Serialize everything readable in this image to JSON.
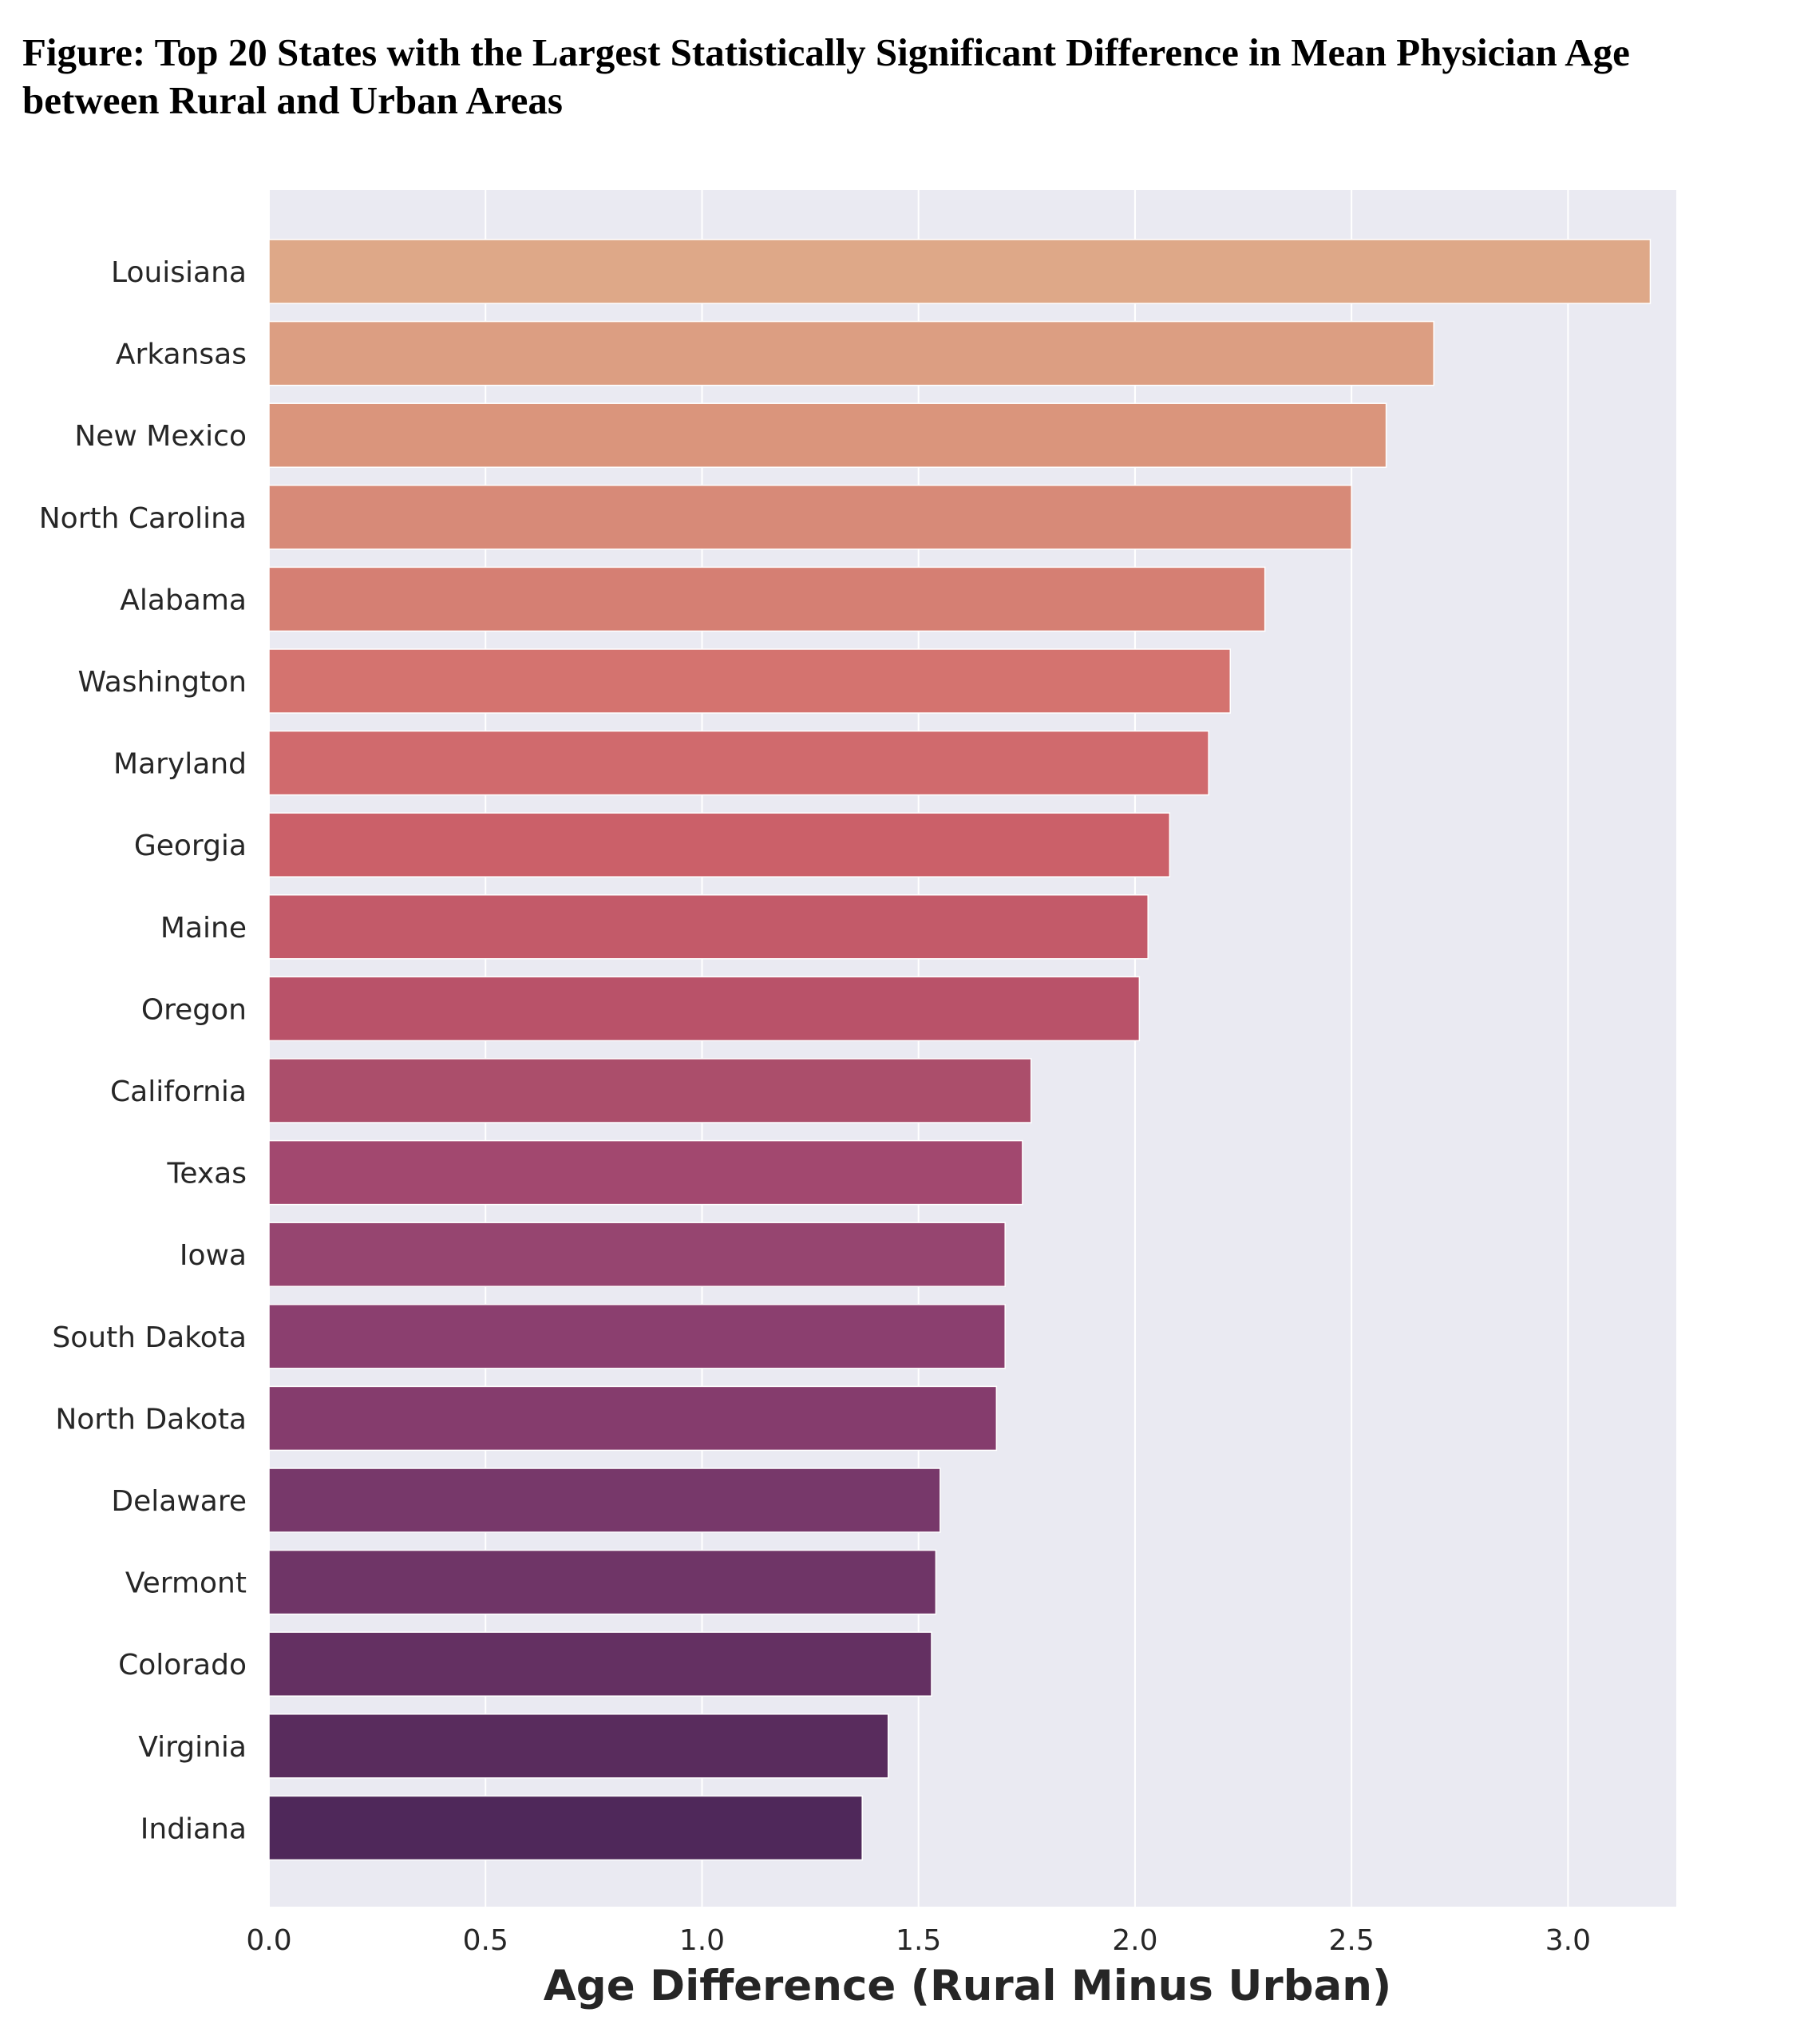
{
  "figure_title": "Figure: Top 20 States with the Largest Statistically Significant Difference in Mean Physician Age between Rural and Urban Areas",
  "chart_data": {
    "type": "bar",
    "orientation": "horizontal",
    "title": "",
    "xlabel": "Age Difference (Rural Minus Urban)",
    "ylabel": "",
    "xlim": [
      0,
      3.25
    ],
    "xticks": [
      "0.0",
      "0.5",
      "1.0",
      "1.5",
      "2.0",
      "2.5",
      "3.0"
    ],
    "grid": true,
    "categories": [
      "Louisiana",
      "Arkansas",
      "New Mexico",
      "North Carolina",
      "Alabama",
      "Washington",
      "Maryland",
      "Georgia",
      "Maine",
      "Oregon",
      "California",
      "Texas",
      "Iowa",
      "South Dakota",
      "North Dakota",
      "Delaware",
      "Vermont",
      "Colorado",
      "Virginia",
      "Indiana"
    ],
    "values": [
      3.19,
      2.69,
      2.58,
      2.5,
      2.3,
      2.22,
      2.17,
      2.08,
      2.03,
      2.01,
      1.76,
      1.74,
      1.7,
      1.7,
      1.68,
      1.55,
      1.54,
      1.53,
      1.43,
      1.37
    ],
    "colors": [
      "#dea888",
      "#dc9e82",
      "#da957c",
      "#d78a78",
      "#d57f73",
      "#d4736f",
      "#d06a6d",
      "#cb6069",
      "#c35a69",
      "#b95269",
      "#ab4e6b",
      "#a2486f",
      "#964570",
      "#8b3f6f",
      "#853c6d",
      "#77386a",
      "#6f3567",
      "#643062",
      "#592c5d",
      "#4f285a"
    ],
    "plot_background": "#eaeaf2",
    "grid_color": "#ffffff"
  }
}
